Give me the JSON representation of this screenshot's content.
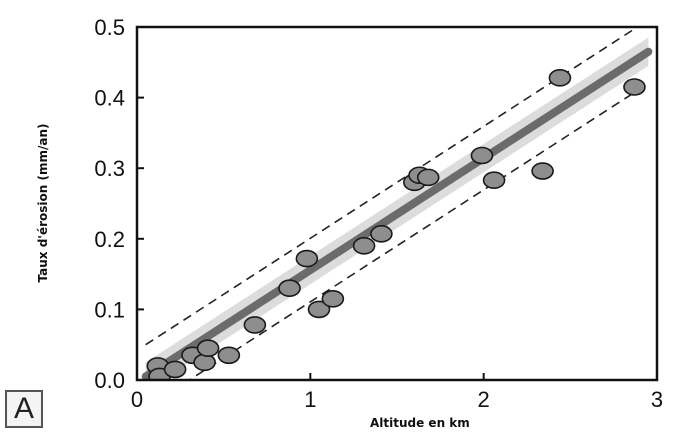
{
  "panel_label": "A",
  "chart_data": {
    "type": "scatter",
    "xlabel": "Altitude en km",
    "ylabel": "Taux d'érosion (mm/an)",
    "xlim": [
      0,
      3
    ],
    "ylim": [
      0,
      0.5
    ],
    "x_ticks": [
      "0",
      "1",
      "2",
      "3"
    ],
    "y_ticks": [
      "0.0",
      "0.1",
      "0.2",
      "0.3",
      "0.4",
      "0.5"
    ],
    "grid": false,
    "points": [
      {
        "x": 0.12,
        "y": 0.02
      },
      {
        "x": 0.13,
        "y": 0.005
      },
      {
        "x": 0.22,
        "y": 0.015
      },
      {
        "x": 0.32,
        "y": 0.035
      },
      {
        "x": 0.39,
        "y": 0.025
      },
      {
        "x": 0.41,
        "y": 0.045
      },
      {
        "x": 0.53,
        "y": 0.035
      },
      {
        "x": 0.68,
        "y": 0.078
      },
      {
        "x": 0.88,
        "y": 0.13
      },
      {
        "x": 0.98,
        "y": 0.172
      },
      {
        "x": 1.05,
        "y": 0.1
      },
      {
        "x": 1.13,
        "y": 0.115
      },
      {
        "x": 1.31,
        "y": 0.19
      },
      {
        "x": 1.41,
        "y": 0.207
      },
      {
        "x": 1.6,
        "y": 0.28
      },
      {
        "x": 1.63,
        "y": 0.29
      },
      {
        "x": 1.68,
        "y": 0.287
      },
      {
        "x": 1.99,
        "y": 0.318
      },
      {
        "x": 2.06,
        "y": 0.283
      },
      {
        "x": 2.34,
        "y": 0.296
      },
      {
        "x": 2.44,
        "y": 0.428
      },
      {
        "x": 2.87,
        "y": 0.415
      }
    ],
    "regression": {
      "x": [
        0.05,
        2.95
      ],
      "y": [
        0.005,
        0.465
      ]
    },
    "confidence_band": {
      "x": [
        0.05,
        2.95
      ],
      "lower": [
        -0.015,
        0.445
      ],
      "upper": [
        0.025,
        0.485
      ]
    },
    "prediction_interval": {
      "x": [
        0.05,
        2.95
      ],
      "lower": [
        -0.04,
        0.42
      ],
      "upper": [
        0.05,
        0.51
      ]
    },
    "colors": {
      "points": "#8e8e8e",
      "point_edge": "#1a1a1a",
      "line": "#6b6b6b",
      "band": "#dcdcdc",
      "dashed": "#222222",
      "axes": "#111111"
    }
  }
}
